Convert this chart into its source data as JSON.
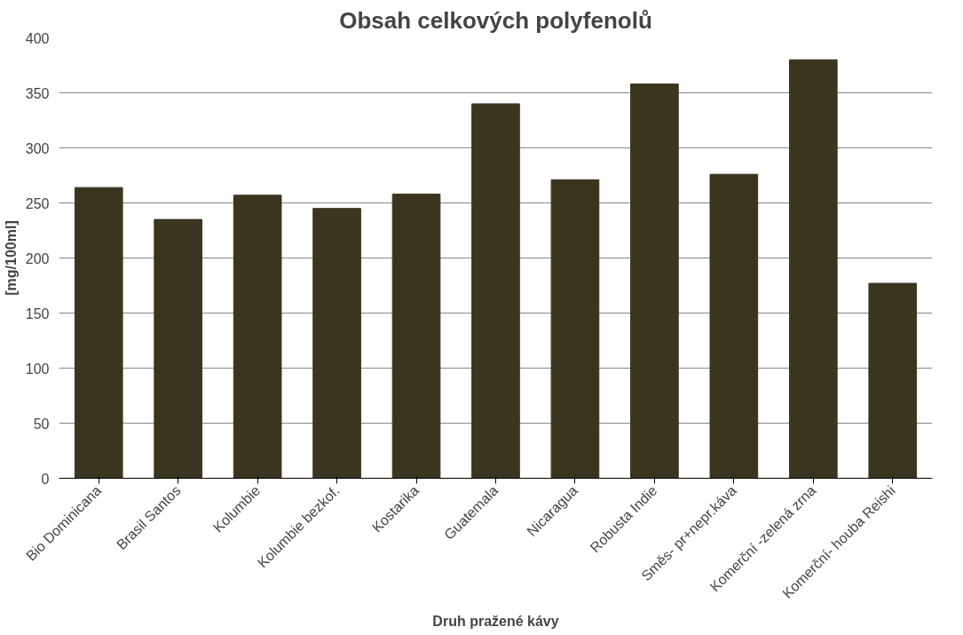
{
  "chart_data": {
    "type": "bar",
    "title": "Obsah celkových polyfenolů",
    "xlabel": "Druh pražené kávy",
    "ylabel": "[mg/100ml]",
    "categories": [
      "Bio Dominicana",
      "Brasil Santos",
      "Kolumbie",
      "Kolumbie bezkof.",
      "Kostarika",
      "Guatemala",
      "Nicaragua",
      "Robusta Indie",
      "Směs- pr+nepr.káva",
      "Komerční -zelená zrna",
      "Komerční- houba Reishi"
    ],
    "values": [
      264,
      235,
      257,
      245,
      258,
      340,
      271,
      358,
      276,
      380,
      177
    ],
    "color": "#3b3520",
    "ylim": [
      0,
      400
    ],
    "yticks": [
      0,
      50,
      100,
      150,
      200,
      250,
      300,
      350,
      400
    ],
    "grid": "y"
  }
}
